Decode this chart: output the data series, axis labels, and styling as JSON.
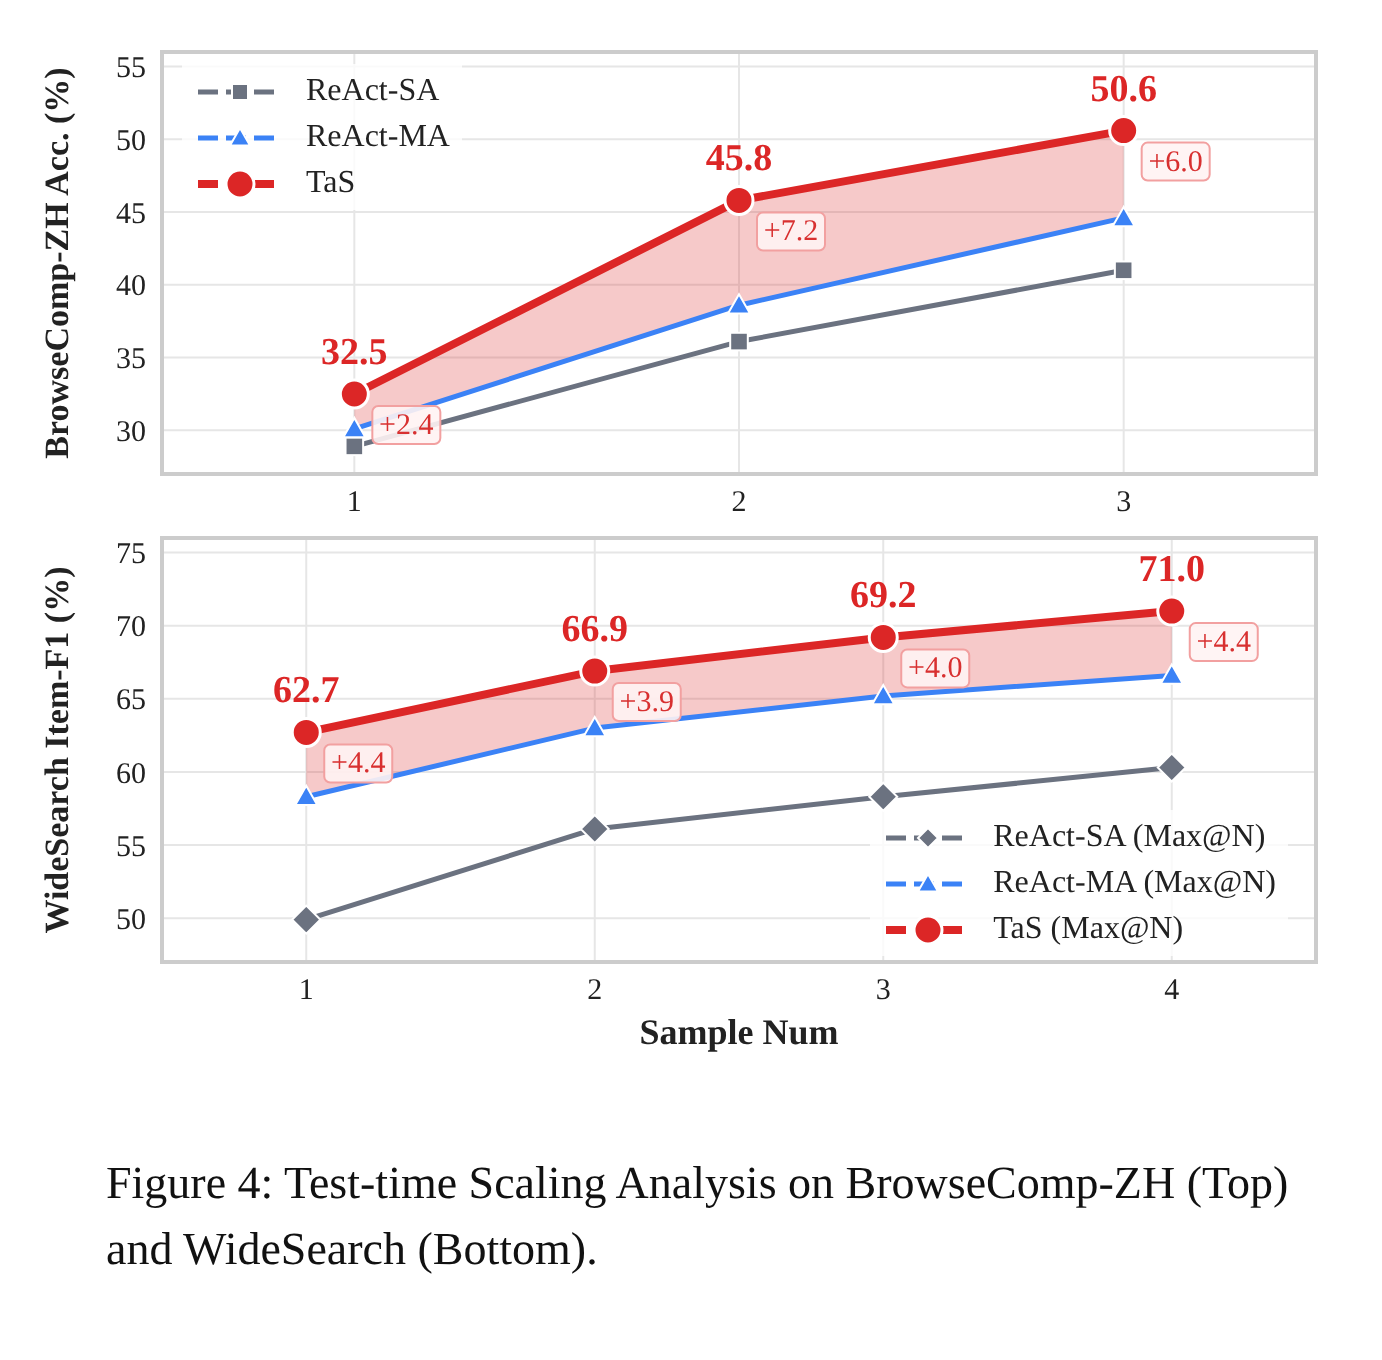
{
  "chart_data": [
    {
      "type": "line",
      "ylabel": "BrowseComp-ZH Acc. (%)",
      "x": [
        1,
        2,
        3
      ],
      "xlim": [
        0.5,
        3.5
      ],
      "xticks": [
        1,
        2,
        3
      ],
      "ylim": [
        27,
        56
      ],
      "yticks": [
        30,
        35,
        40,
        45,
        50,
        55
      ],
      "grid": true,
      "legend": "top left",
      "series": [
        {
          "name": "ReAct-SA",
          "color": "#6b7280",
          "marker": "square",
          "values": [
            28.9,
            36.1,
            41.0
          ]
        },
        {
          "name": "ReAct-MA",
          "color": "#3b82f6",
          "marker": "triangle",
          "values": [
            30.1,
            38.6,
            44.6
          ]
        },
        {
          "name": "TaS",
          "color": "#dc2626",
          "marker": "circle",
          "values": [
            32.5,
            45.8,
            50.6
          ],
          "value_labels": [
            "32.5",
            "45.8",
            "50.6"
          ],
          "lower": [
            30.1,
            38.6,
            44.6
          ],
          "upper": [
            32.5,
            45.8,
            50.6
          ]
        }
      ],
      "annotations": [
        {
          "text": "+2.4",
          "x": 1,
          "y": 32.5
        },
        {
          "text": "+7.2",
          "x": 2,
          "y": 45.8
        },
        {
          "text": "+6.0",
          "x": 3,
          "y": 50.6
        }
      ]
    },
    {
      "type": "line",
      "xlabel": "Sample Num",
      "ylabel": "WideSearch Item-F1 (%)",
      "x": [
        1,
        2,
        3,
        4
      ],
      "xlim": [
        0.5,
        4.5
      ],
      "xticks": [
        1,
        2,
        3,
        4
      ],
      "ylim": [
        47,
        76
      ],
      "yticks": [
        50,
        55,
        60,
        65,
        70,
        75
      ],
      "grid": true,
      "legend": "bottom right",
      "series": [
        {
          "name": "ReAct-SA (Max@N)",
          "color": "#6b7280",
          "marker": "diamond",
          "values": [
            49.9,
            56.1,
            58.3,
            60.3
          ]
        },
        {
          "name": "ReAct-MA (Max@N)",
          "color": "#3b82f6",
          "marker": "triangle",
          "values": [
            58.3,
            63.0,
            65.2,
            66.6
          ]
        },
        {
          "name": "TaS (Max@N)",
          "color": "#dc2626",
          "marker": "circle",
          "values": [
            62.7,
            66.9,
            69.2,
            71.0
          ],
          "value_labels": [
            "62.7",
            "66.9",
            "69.2",
            "71.0"
          ],
          "lower": [
            58.3,
            63.0,
            65.2,
            66.6
          ],
          "upper": [
            62.7,
            66.9,
            69.2,
            71.0
          ]
        }
      ],
      "annotations": [
        {
          "text": "+4.4",
          "x": 1,
          "y": 62.7
        },
        {
          "text": "+3.9",
          "x": 2,
          "y": 66.9
        },
        {
          "text": "+4.0",
          "x": 3,
          "y": 69.2
        },
        {
          "text": "+4.4",
          "x": 4,
          "y": 71.0
        },
        "Figure 4: Test-time Scaling Analysis on BrowseComp-ZH (Top) and WideSearch (Bottom)."
      ]
    }
  ]
}
